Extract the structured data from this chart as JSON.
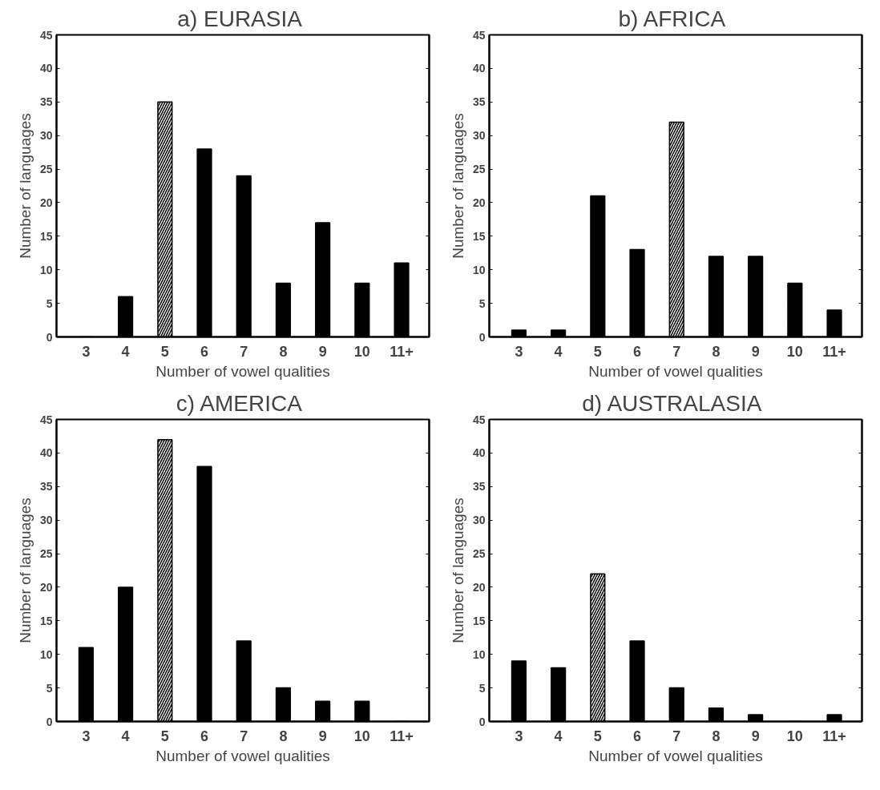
{
  "chart_data": [
    {
      "type": "bar",
      "title": "a)  EURASIA",
      "xlabel": "Number of vowel qualities",
      "ylabel": "Number of languages",
      "categories": [
        "3",
        "4",
        "5",
        "6",
        "7",
        "8",
        "9",
        "10",
        "11+"
      ],
      "values": [
        0,
        6,
        35,
        28,
        24,
        8,
        17,
        8,
        11
      ],
      "colors": [
        "#000000",
        "#000000",
        "#ffffff",
        "#000000",
        "#000000",
        "#000000",
        "#000000",
        "#000000",
        "#000000"
      ],
      "ylim": [
        0,
        45
      ],
      "yticks": [
        0,
        5,
        10,
        15,
        20,
        25,
        30,
        35,
        40,
        45
      ],
      "grid": false
    },
    {
      "type": "bar",
      "title": "b)  AFRICA",
      "xlabel": "Number of vowel qualities",
      "ylabel": "Number of languages",
      "categories": [
        "3",
        "4",
        "5",
        "6",
        "7",
        "8",
        "9",
        "10",
        "11+"
      ],
      "values": [
        1,
        1,
        21,
        13,
        32,
        12,
        12,
        8,
        4
      ],
      "colors": [
        "#000000",
        "#000000",
        "#000000",
        "#000000",
        "#ffffff",
        "#000000",
        "#000000",
        "#000000",
        "#000000"
      ],
      "ylim": [
        0,
        45
      ],
      "yticks": [
        0,
        5,
        10,
        15,
        20,
        25,
        30,
        35,
        40,
        45
      ],
      "grid": false
    },
    {
      "type": "bar",
      "title": "c)  AMERICA",
      "xlabel": "Number of vowel qualities",
      "ylabel": "Number of languages",
      "categories": [
        "3",
        "4",
        "5",
        "6",
        "7",
        "8",
        "9",
        "10",
        "11+"
      ],
      "values": [
        11,
        20,
        42,
        38,
        12,
        5,
        3,
        3,
        0
      ],
      "colors": [
        "#000000",
        "#000000",
        "#ffffff",
        "#000000",
        "#000000",
        "#000000",
        "#000000",
        "#000000",
        "#000000"
      ],
      "ylim": [
        0,
        45
      ],
      "yticks": [
        0,
        5,
        10,
        15,
        20,
        25,
        30,
        35,
        40,
        45
      ],
      "grid": false
    },
    {
      "type": "bar",
      "title": "d)  AUSTRALASIA",
      "xlabel": "Number of vowel qualities",
      "ylabel": "Number of languages",
      "categories": [
        "3",
        "4",
        "5",
        "6",
        "7",
        "8",
        "9",
        "10",
        "11+"
      ],
      "values": [
        9,
        8,
        22,
        12,
        5,
        2,
        1,
        0,
        1
      ],
      "colors": [
        "#000000",
        "#000000",
        "#ffffff",
        "#000000",
        "#000000",
        "#000000",
        "#000000",
        "#000000",
        "#000000"
      ],
      "ylim": [
        0,
        45
      ],
      "yticks": [
        0,
        5,
        10,
        15,
        20,
        25,
        30,
        35,
        40,
        45
      ],
      "grid": false
    }
  ]
}
